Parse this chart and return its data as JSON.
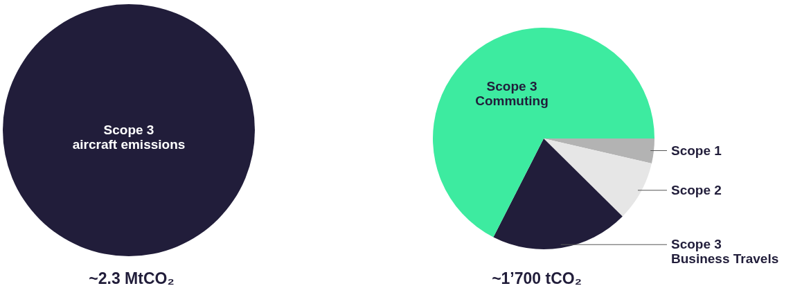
{
  "chart_data": [
    {
      "type": "pie",
      "title": "~2.3 MtCO₂",
      "categories": [
        "Scope 3\naircraft emissions"
      ],
      "values": [
        100
      ],
      "colors": [
        "#211d3a"
      ]
    },
    {
      "type": "pie",
      "title": "~1’700 tCO₂",
      "categories": [
        "Scope 1",
        "Scope 2",
        "Scope 3\nBusiness Travels",
        "Scope 3\nCommuting"
      ],
      "values": [
        3.6,
        8.8,
        20.1,
        67.5
      ],
      "colors": [
        "#b3b3b3",
        "#e6e6e6",
        "#211d3a",
        "#3deba0"
      ]
    }
  ]
}
